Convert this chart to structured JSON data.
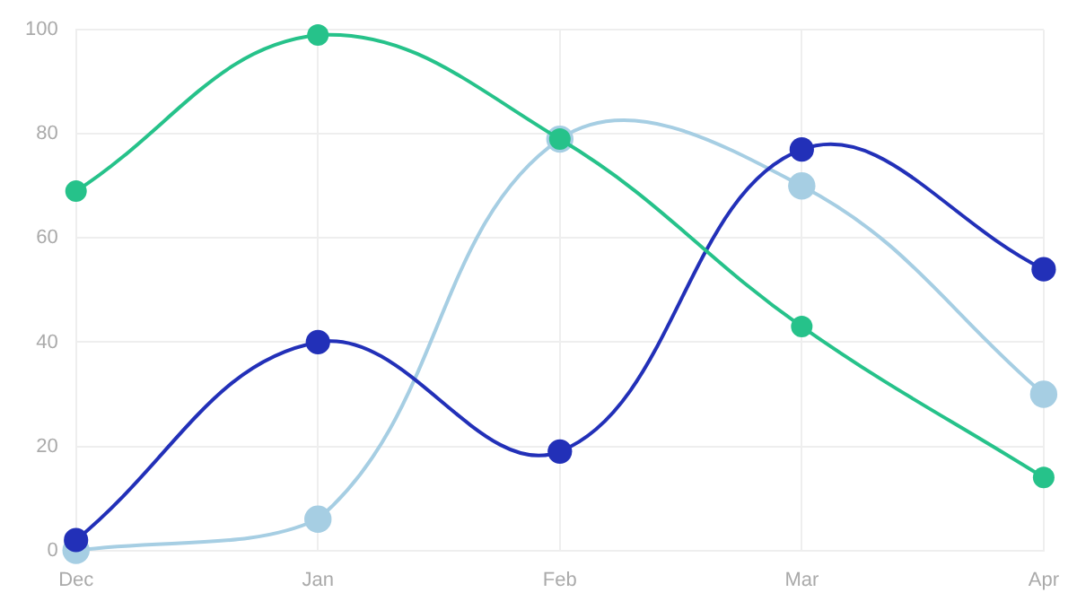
{
  "chart_data": {
    "type": "line",
    "categories": [
      "Dec",
      "Jan",
      "Feb",
      "Mar",
      "Apr"
    ],
    "series": [
      {
        "color": "#26c28a",
        "values": [
          69,
          99,
          79,
          43,
          14
        ]
      },
      {
        "color": "#2230b8",
        "values": [
          2,
          40,
          19,
          77,
          54
        ]
      },
      {
        "color": "#a6cee3",
        "values": [
          0,
          6,
          79,
          70,
          30
        ]
      }
    ],
    "ylim": [
      0,
      100
    ],
    "yticks": [
      0,
      20,
      40,
      60,
      80,
      100
    ],
    "grid": true,
    "legend": false,
    "marker": "circle",
    "line_style": "solid"
  }
}
